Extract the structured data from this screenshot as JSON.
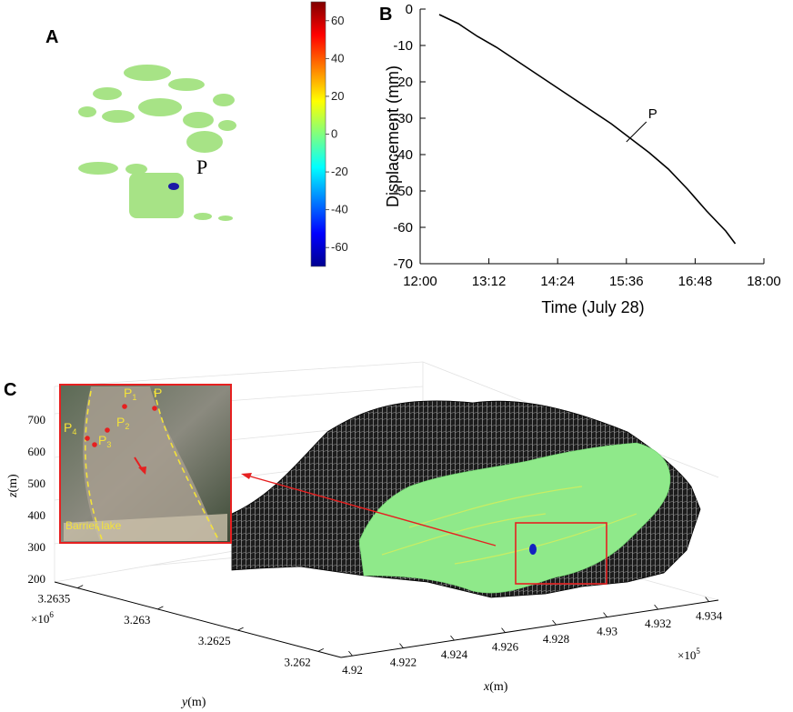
{
  "panels": {
    "a": "A",
    "b": "B",
    "c": "C"
  },
  "panel_a": {
    "point_label": "P",
    "colorbar": {
      "ticks": [
        "60",
        "40",
        "20",
        "0",
        "-20",
        "-40",
        "-60"
      ]
    }
  },
  "chart_data": {
    "type": "line",
    "xlabel": "Time (July 28)",
    "ylabel": "Displacement (mm)",
    "x_ticks": [
      "12:00",
      "13:12",
      "14:24",
      "15:36",
      "16:48",
      "18:00"
    ],
    "y_ticks": [
      "0",
      "-10",
      "-20",
      "-30",
      "-40",
      "-50",
      "-60",
      "-70"
    ],
    "xlim": [
      "12:00",
      "18:00"
    ],
    "ylim": [
      -70,
      0
    ],
    "annotation": "P",
    "series": [
      {
        "x": [
          "12:20",
          "12:40",
          "13:00",
          "13:20",
          "13:40",
          "14:00",
          "14:20",
          "14:40",
          "15:00",
          "15:20",
          "15:40",
          "16:00",
          "16:20",
          "16:40",
          "17:00",
          "17:20",
          "17:30"
        ],
        "y": [
          -1.5,
          -4.0,
          -7.5,
          -10.5,
          -14.0,
          -17.5,
          -21.0,
          -24.5,
          -28.0,
          -31.5,
          -35.5,
          -39.5,
          -44.0,
          -49.5,
          -55.5,
          -61.0,
          -64.5
        ]
      }
    ]
  },
  "panel_c": {
    "z_axis": {
      "label_var": "z",
      "label_unit": "(m)",
      "ticks": [
        "700",
        "600",
        "500",
        "400",
        "300",
        "200"
      ]
    },
    "y_axis": {
      "label_var": "y",
      "label_unit": "(m)",
      "ticks": [
        "3.2635",
        "3.263",
        "3.2625",
        "3.262"
      ],
      "multiplier_base": "×10",
      "multiplier_exp": "6"
    },
    "x_axis": {
      "label_var": "x",
      "label_unit": "(m)",
      "ticks": [
        "4.92",
        "4.922",
        "4.924",
        "4.926",
        "4.928",
        "4.93",
        "4.932",
        "4.934"
      ],
      "multiplier_base": "×10",
      "multiplier_exp": "5"
    },
    "inset": {
      "points": [
        {
          "base": "P",
          "sub": "1"
        },
        {
          "base": "P",
          "sub": "2"
        },
        {
          "base": "P",
          "sub": "3"
        },
        {
          "base": "P",
          "sub": "4"
        },
        {
          "base": "P",
          "sub": ""
        }
      ],
      "lake_label": "Barrier lake"
    }
  }
}
